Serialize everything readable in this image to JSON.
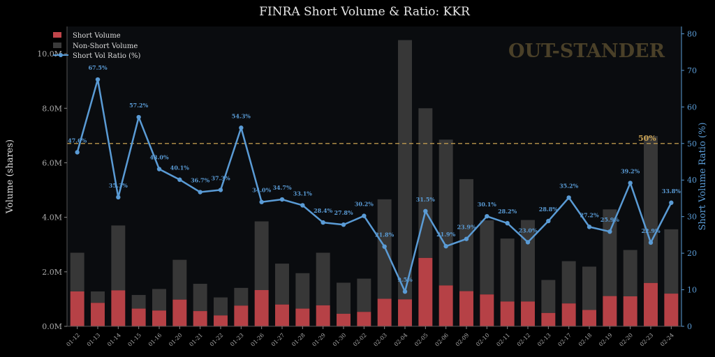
{
  "chart_data": {
    "type": "bar+line",
    "title": "FINRA Short Volume & Ratio: KKR",
    "watermark": "OUT-STANDER",
    "ylabel_left": "Volume (shares)",
    "ylabel_right": "Short Volume Ratio (%)",
    "ylim_left": [
      0,
      11000000
    ],
    "ylim_right": [
      0,
      82
    ],
    "left_ticks": [
      {
        "value": 0,
        "label": "0.0M"
      },
      {
        "value": 2000000,
        "label": "2.0M"
      },
      {
        "value": 4000000,
        "label": "4.0M"
      },
      {
        "value": 6000000,
        "label": "6.0M"
      },
      {
        "value": 8000000,
        "label": "8.0M"
      },
      {
        "value": 10000000,
        "label": "10.0M"
      }
    ],
    "right_ticks": [
      {
        "value": 0,
        "label": "0"
      },
      {
        "value": 10,
        "label": "10"
      },
      {
        "value": 20,
        "label": "20"
      },
      {
        "value": 30,
        "label": "30"
      },
      {
        "value": 40,
        "label": "40"
      },
      {
        "value": 50,
        "label": "50"
      },
      {
        "value": 60,
        "label": "60"
      },
      {
        "value": 70,
        "label": "70"
      },
      {
        "value": 80,
        "label": "80"
      }
    ],
    "reference_line": {
      "value": 50,
      "label": "50%"
    },
    "grid": false,
    "legend_position": "top-left",
    "categories": [
      "01-12",
      "01-13",
      "01-14",
      "01-15",
      "01-16",
      "01-20",
      "01-21",
      "01-22",
      "01-23",
      "01-26",
      "01-27",
      "01-28",
      "01-29",
      "01-30",
      "02-02",
      "02-03",
      "02-04",
      "02-05",
      "02-06",
      "02-09",
      "02-10",
      "02-11",
      "02-12",
      "02-13",
      "02-17",
      "02-18",
      "02-19",
      "02-20",
      "02-23",
      "02-24"
    ],
    "series": [
      {
        "name": "Short Volume",
        "kind": "bar",
        "color": "#c0454a",
        "values": [
          1280000,
          860000,
          1320000,
          650000,
          580000,
          980000,
          560000,
          400000,
          760000,
          1330000,
          800000,
          650000,
          770000,
          460000,
          530000,
          1010000,
          990000,
          2510000,
          1500000,
          1290000,
          1170000,
          910000,
          910000,
          490000,
          840000,
          600000,
          1110000,
          1100000,
          1590000,
          1200000
        ]
      },
      {
        "name": "Non-Short Volume",
        "kind": "bar-stacked",
        "color": "#3a3a3a",
        "values": [
          1420000,
          420000,
          2380000,
          500000,
          790000,
          1460000,
          1000000,
          660000,
          650000,
          2520000,
          1500000,
          1300000,
          1930000,
          1140000,
          1220000,
          3650000,
          9510000,
          5490000,
          5350000,
          4110000,
          2720000,
          2310000,
          2990000,
          1210000,
          1550000,
          1590000,
          3180000,
          1700000,
          5390000,
          2360000
        ]
      },
      {
        "name": "Short Vol Ratio (%)",
        "kind": "line",
        "color": "#5a9bd5",
        "values": [
          47.6,
          67.5,
          35.3,
          57.2,
          43.0,
          40.1,
          36.7,
          37.3,
          54.3,
          34.0,
          34.7,
          33.1,
          28.4,
          27.8,
          30.2,
          21.8,
          9.5,
          31.5,
          21.9,
          23.9,
          30.1,
          28.2,
          23.0,
          28.8,
          35.2,
          27.2,
          25.9,
          39.2,
          22.9,
          33.8
        ],
        "labels": [
          "47.6%",
          "67.5%",
          "35.3%",
          "57.2%",
          "43.0%",
          "40.1%",
          "36.7%",
          "37.3%",
          "54.3%",
          "34.0%",
          "34.7%",
          "33.1%",
          "28.4%",
          "27.8%",
          "30.2%",
          "21.8%",
          "9.5%",
          "31.5%",
          "21.9%",
          "23.9%",
          "30.1%",
          "28.2%",
          "23.0%",
          "28.8%",
          "35.2%",
          "27.2%",
          "25.9%",
          "39.2%",
          "22.9%",
          "33.8%"
        ]
      }
    ],
    "colors": {
      "background": "#000000",
      "plot_background": "#0a0c0f",
      "axis": "#444444",
      "tick_text": "#aaaaaa",
      "right_axis": "#5a9bd5",
      "reference": "#c8a050",
      "watermark": "#4a4028"
    }
  }
}
